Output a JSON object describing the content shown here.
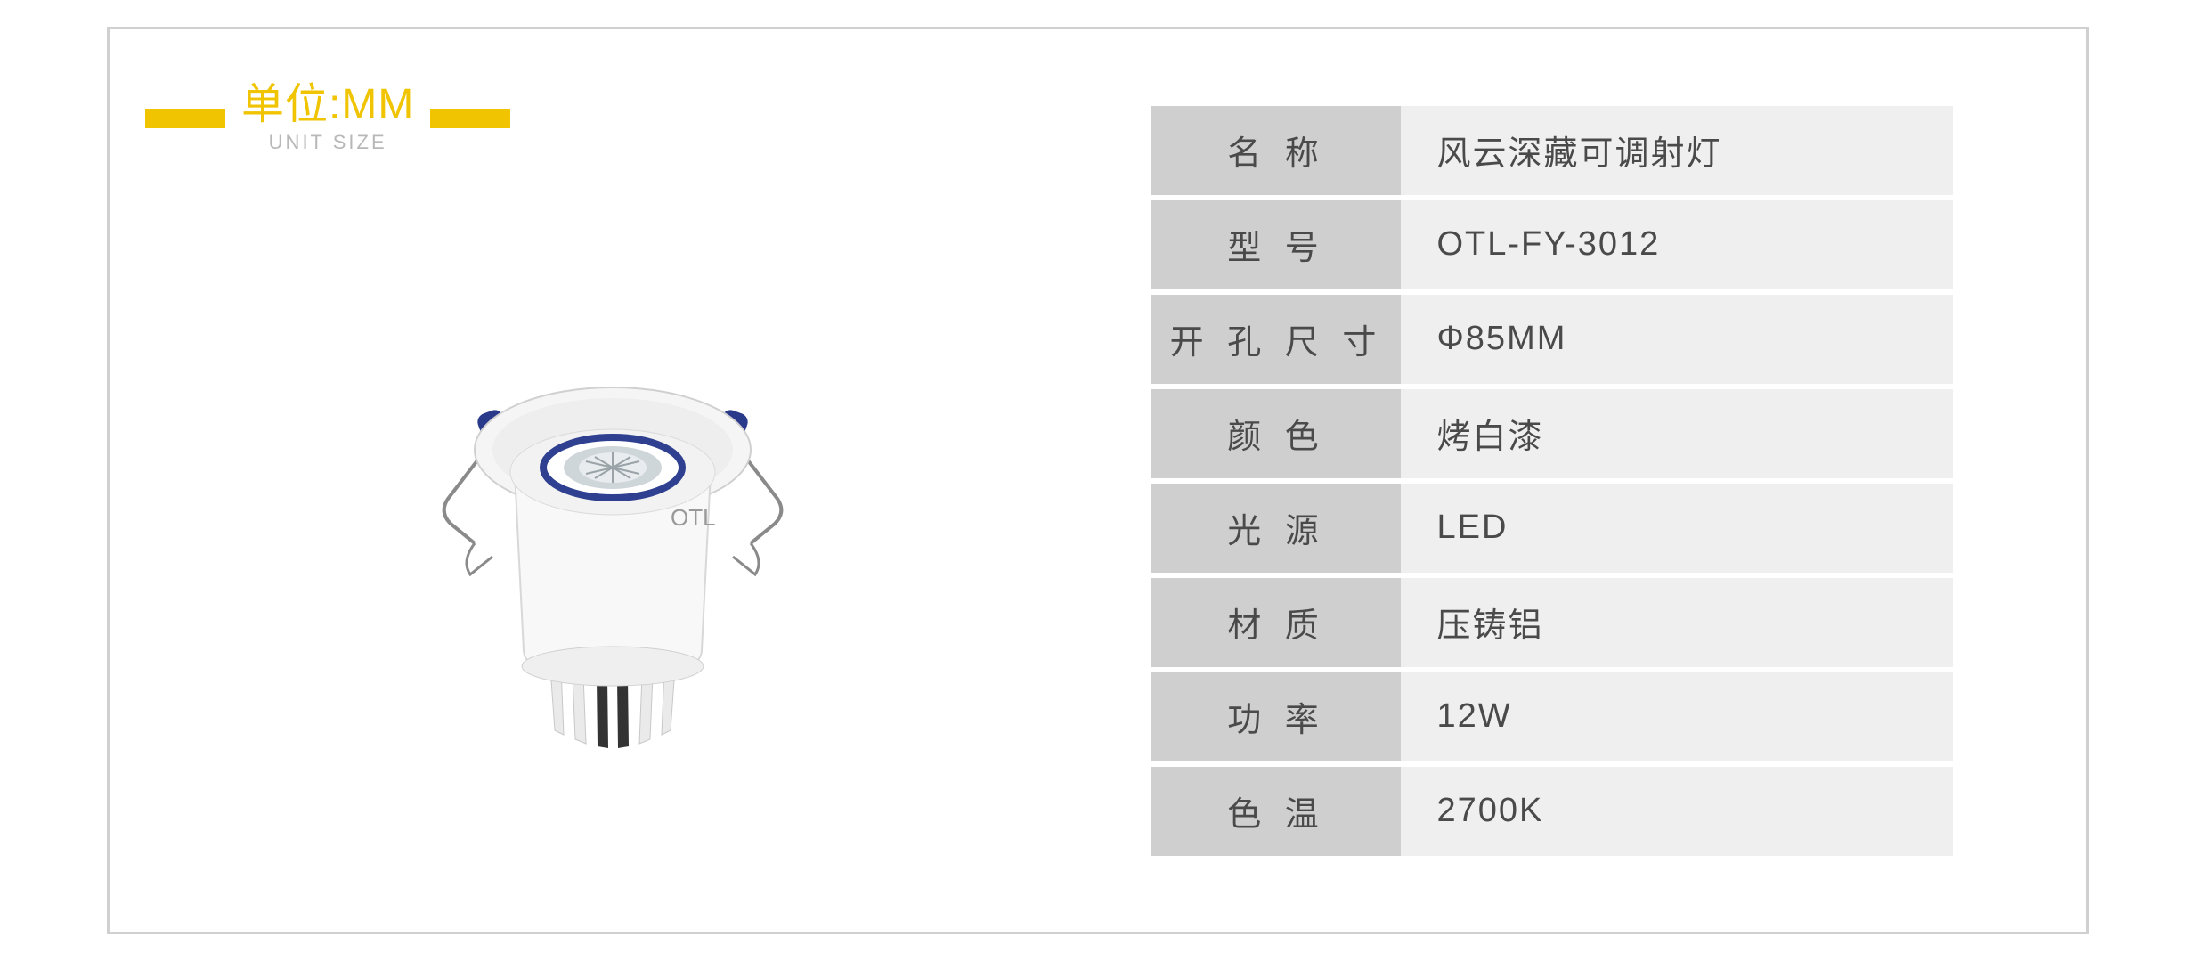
{
  "header": {
    "unit_title": "单位:MM",
    "unit_subtitle": "UNIT SIZE",
    "bar_color": "#f0c400",
    "title_color": "#f0c400",
    "sub_color": "#b8b8b8"
  },
  "product": {
    "brand": "OTL",
    "body_color": "#ffffff",
    "clip_color": "#2a3a8a",
    "ring_color": "#304090",
    "shadow_color": "#d8d8d8"
  },
  "spec_table": {
    "label_bg": "#cfcfcf",
    "value_bg": "#efefef",
    "text_color": "#4a4a4a",
    "rows": [
      {
        "label": "名 称",
        "value": "风云深藏可调射灯"
      },
      {
        "label": "型 号",
        "value": "OTL-FY-3012"
      },
      {
        "label": "开 孔 尺 寸",
        "value": "Φ85MM"
      },
      {
        "label": "颜 色",
        "value": "烤白漆"
      },
      {
        "label": "光 源",
        "value": "LED"
      },
      {
        "label": "材 质",
        "value": "压铸铝"
      },
      {
        "label": "功 率",
        "value": "12W"
      },
      {
        "label": "色 温",
        "value": "2700K"
      }
    ]
  }
}
